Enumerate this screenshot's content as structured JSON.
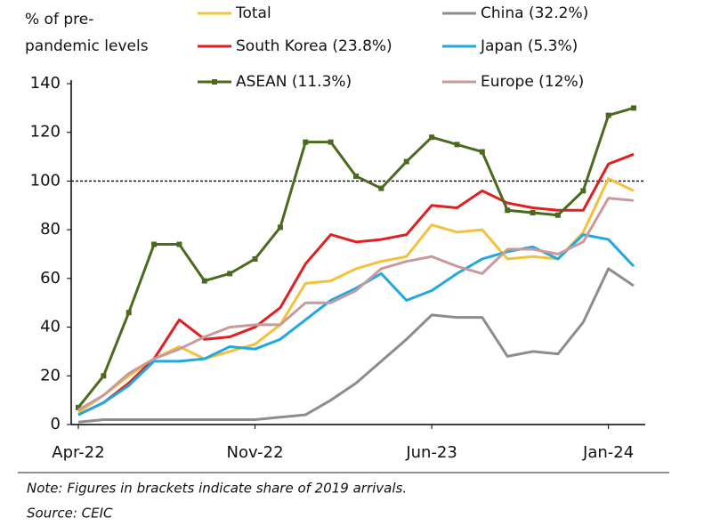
{
  "chart_data": {
    "type": "line",
    "ylabel": [
      "% of pre-",
      "pandemic levels"
    ],
    "categories": [
      "Apr-22",
      null,
      null,
      null,
      null,
      null,
      null,
      "Nov-22",
      null,
      null,
      null,
      null,
      null,
      null,
      "Jun-23",
      null,
      null,
      null,
      null,
      null,
      null,
      "Jan-24",
      null
    ],
    "series": [
      {
        "name": "Total",
        "color": "#f5c03a",
        "values": [
          5,
          12,
          20,
          27,
          32,
          27,
          30,
          33,
          41,
          58,
          59,
          64,
          67,
          69,
          82,
          79,
          80,
          68,
          69,
          68,
          79,
          101,
          96
        ]
      },
      {
        "name": "China (32.2%)",
        "color": "#8c8c8c",
        "values": [
          1,
          2,
          2,
          2,
          2,
          2,
          2,
          2,
          3,
          4,
          10,
          17,
          26,
          35,
          45,
          44,
          44,
          28,
          30,
          29,
          42,
          64,
          57
        ]
      },
      {
        "name": "South Korea (23.8%)",
        "color": "#e02020",
        "values": [
          4,
          9,
          17,
          27,
          43,
          35,
          36,
          40,
          48,
          66,
          78,
          75,
          76,
          78,
          90,
          89,
          96,
          91,
          89,
          88,
          88,
          107,
          111
        ]
      },
      {
        "name": "Japan (5.3%)",
        "color": "#21a8e0",
        "values": [
          4,
          9,
          16,
          26,
          26,
          27,
          32,
          31,
          35,
          43,
          51,
          56,
          62,
          51,
          55,
          62,
          68,
          71,
          73,
          68,
          78,
          76,
          65
        ]
      },
      {
        "name": "ASEAN (11.3%)",
        "color": "#4a6b1f",
        "marker": true,
        "values": [
          7,
          20,
          46,
          74,
          74,
          59,
          62,
          68,
          81,
          116,
          116,
          102,
          97,
          108,
          118,
          115,
          112,
          88,
          87,
          86,
          96,
          127,
          130
        ]
      },
      {
        "name": "Europe (12%)",
        "color": "#c89a9a",
        "values": [
          6,
          12,
          21,
          27,
          31,
          36,
          40,
          41,
          41,
          50,
          50,
          55,
          64,
          67,
          69,
          65,
          62,
          72,
          72,
          70,
          75,
          93,
          92
        ]
      }
    ],
    "reference_line": 100,
    "ylim": [
      0,
      140
    ],
    "yticks": [
      0,
      20,
      40,
      60,
      80,
      100,
      120,
      140
    ],
    "notes": [
      "Note: Figures in brackets indicate share of 2019 arrivals.",
      "Source: CEIC"
    ]
  }
}
